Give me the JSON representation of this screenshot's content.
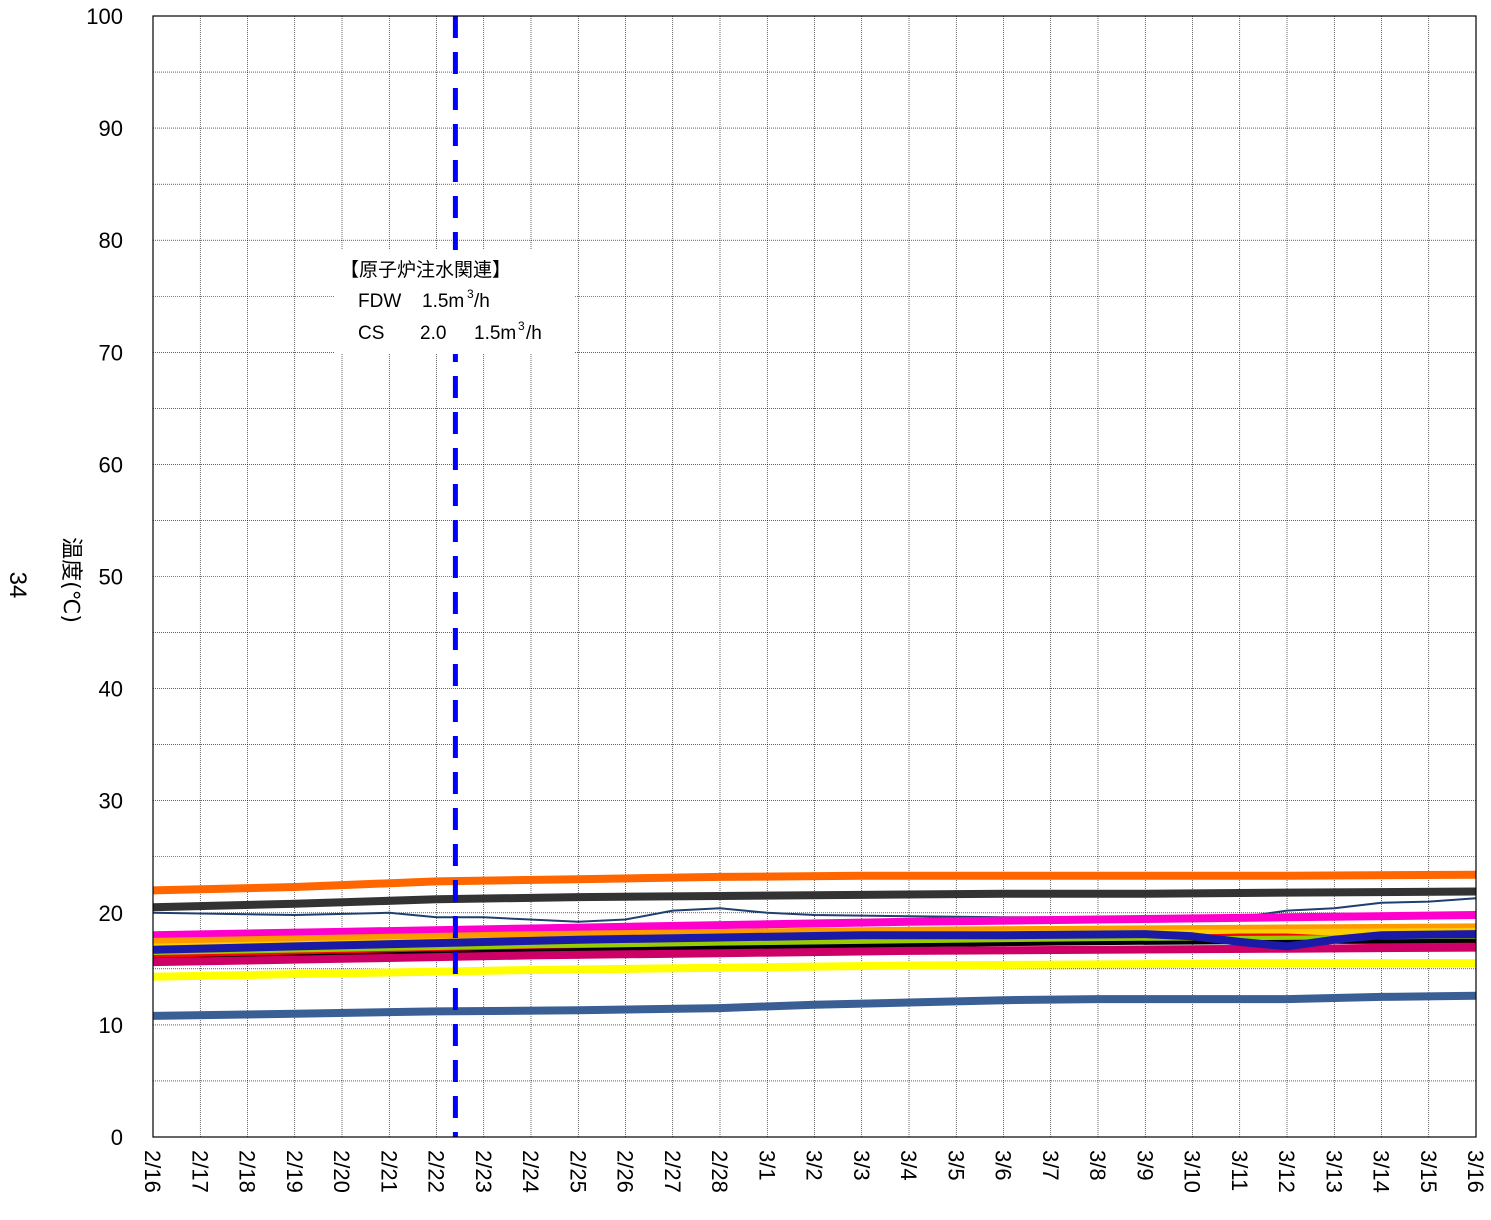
{
  "chart_data": {
    "type": "line",
    "ylabel": "温度(℃)",
    "page_number": "34",
    "ylim": [
      0,
      100
    ],
    "yticks": [
      0,
      10,
      20,
      30,
      40,
      50,
      60,
      70,
      80,
      90,
      100
    ],
    "x_start": "2/16",
    "x_end": "3/16",
    "categories": [
      "2/16",
      "2/17",
      "2/18",
      "2/19",
      "2/20",
      "2/21",
      "2/22",
      "2/23",
      "2/24",
      "2/25",
      "2/26",
      "2/27",
      "2/28",
      "3/1",
      "3/2",
      "3/3",
      "3/4",
      "3/5",
      "3/6",
      "3/7",
      "3/8",
      "3/9",
      "3/10",
      "3/11",
      "3/12",
      "3/13",
      "3/14",
      "3/15",
      "3/16"
    ],
    "grid": true,
    "annotation": {
      "lines": [
        "【原子炉注水関連】",
        "FDW",
        "1.5m",
        "3",
        "/h",
        "CS",
        "2.0",
        "1.5m",
        "3",
        "/h"
      ],
      "marker_day": 6.4,
      "marker_color": "#0000ff"
    },
    "series": [
      {
        "color": "#ff6600",
        "width": 8,
        "x": [
          0,
          3,
          6,
          9,
          12,
          15,
          18,
          21,
          24,
          28
        ],
        "y": [
          22.0,
          22.3,
          22.8,
          23.0,
          23.2,
          23.3,
          23.3,
          23.3,
          23.3,
          23.4
        ]
      },
      {
        "color": "#333333",
        "width": 8,
        "x": [
          0,
          3,
          6,
          9,
          12,
          15,
          18,
          21,
          24,
          28
        ],
        "y": [
          20.5,
          20.8,
          21.2,
          21.4,
          21.5,
          21.6,
          21.7,
          21.7,
          21.8,
          21.9
        ]
      },
      {
        "color": "#1f3f6f",
        "width": 2,
        "x": [
          0,
          3,
          5,
          6,
          7,
          9,
          10,
          11,
          12,
          13,
          14,
          16,
          18,
          20,
          22,
          23,
          24,
          25,
          26,
          27,
          28
        ],
        "y": [
          20.0,
          19.8,
          20.0,
          19.6,
          19.6,
          19.2,
          19.4,
          20.2,
          20.4,
          20.0,
          19.8,
          19.7,
          19.6,
          19.6,
          19.4,
          19.6,
          20.2,
          20.4,
          20.9,
          21.0,
          21.3
        ]
      },
      {
        "color": "#ff00cc",
        "width": 8,
        "x": [
          0,
          4,
          8,
          12,
          16,
          20,
          24,
          28
        ],
        "y": [
          18.0,
          18.3,
          18.6,
          18.9,
          19.2,
          19.4,
          19.6,
          19.8
        ]
      },
      {
        "color": "#ff9900",
        "width": 8,
        "x": [
          0,
          4,
          8,
          12,
          16,
          20,
          24,
          28
        ],
        "y": [
          17.4,
          17.7,
          18.0,
          18.2,
          18.4,
          18.5,
          18.6,
          18.7
        ]
      },
      {
        "color": "#ffcc00",
        "width": 8,
        "x": [
          0,
          4,
          8,
          12,
          16,
          20,
          24,
          28
        ],
        "y": [
          16.9,
          17.2,
          17.5,
          17.8,
          18.0,
          18.1,
          18.2,
          18.3
        ]
      },
      {
        "color": "#ff0000",
        "width": 8,
        "x": [
          0,
          4,
          8,
          12,
          16,
          20,
          22,
          23,
          24,
          25,
          26,
          28
        ],
        "y": [
          16.2,
          16.6,
          17.0,
          17.3,
          17.5,
          17.6,
          17.7,
          17.8,
          17.8,
          17.6,
          17.5,
          17.5
        ]
      },
      {
        "color": "#99cc00",
        "width": 6,
        "x": [
          0,
          4,
          8,
          12,
          16,
          20,
          24,
          28
        ],
        "y": [
          16.5,
          16.8,
          17.1,
          17.3,
          17.5,
          17.6,
          17.7,
          17.8
        ]
      },
      {
        "color": "#000000",
        "width": 4,
        "x": [
          0,
          4,
          8,
          12,
          16,
          20,
          24,
          28
        ],
        "y": [
          15.8,
          16.2,
          16.6,
          16.9,
          17.1,
          17.3,
          17.4,
          17.5
        ]
      },
      {
        "color": "#cc0066",
        "width": 8,
        "x": [
          0,
          4,
          8,
          12,
          16,
          20,
          24,
          28
        ],
        "y": [
          15.6,
          15.9,
          16.2,
          16.4,
          16.6,
          16.7,
          16.8,
          16.9
        ]
      },
      {
        "color": "#1a1aa6",
        "width": 8,
        "x": [
          0,
          3,
          6,
          9,
          12,
          15,
          18,
          21,
          22,
          23,
          24,
          25,
          26,
          28
        ],
        "y": [
          16.7,
          17.0,
          17.3,
          17.6,
          17.8,
          18.0,
          18.0,
          18.1,
          17.9,
          17.4,
          17.0,
          17.6,
          18.0,
          18.1
        ]
      },
      {
        "color": "#ffff00",
        "width": 8,
        "x": [
          0,
          4,
          8,
          12,
          16,
          20,
          24,
          28
        ],
        "y": [
          14.3,
          14.6,
          14.9,
          15.1,
          15.3,
          15.4,
          15.5,
          15.5
        ]
      },
      {
        "color": "#3a5f95",
        "width": 8,
        "x": [
          0,
          3,
          6,
          9,
          12,
          14,
          16,
          18,
          20,
          22,
          24,
          26,
          28
        ],
        "y": [
          10.8,
          11.0,
          11.2,
          11.3,
          11.5,
          11.8,
          12.0,
          12.2,
          12.3,
          12.3,
          12.3,
          12.5,
          12.6
        ]
      }
    ]
  }
}
